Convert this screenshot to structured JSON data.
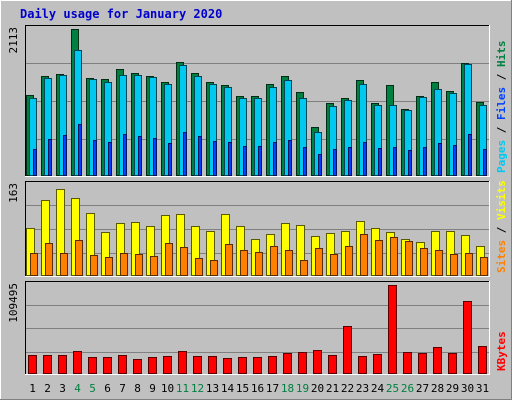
{
  "colors": {
    "background": "#c0c0c0",
    "plot_bg": "#c0c0c0",
    "title": "#0000cc",
    "hits": "#008040",
    "files": "#00c8f0",
    "pages": "#0040ff",
    "visits": "#ffff00",
    "sites": "#ff8000",
    "kbytes": "#ff0000",
    "weekend_day": "#008040",
    "weekday": "#000000"
  },
  "chart_data": [
    {
      "type": "bar",
      "title": "Daily usage for January 2020",
      "panel": "hits-files-pages",
      "ylabel": "Pages / Files / Hits",
      "ymax_label": "2113",
      "ylim": [
        0,
        2113
      ],
      "categories": [
        "1",
        "2",
        "3",
        "4",
        "5",
        "6",
        "7",
        "8",
        "9",
        "10",
        "11",
        "12",
        "13",
        "14",
        "15",
        "16",
        "17",
        "18",
        "19",
        "20",
        "21",
        "22",
        "23",
        "24",
        "25",
        "26",
        "27",
        "28",
        "29",
        "30",
        "31"
      ],
      "weekend_days": [
        "4",
        "5",
        "11",
        "12",
        "18",
        "19",
        "25",
        "26"
      ],
      "series": [
        {
          "name": "Hits",
          "values": [
            1160,
            1430,
            1460,
            2113,
            1410,
            1390,
            1530,
            1470,
            1430,
            1350,
            1630,
            1480,
            1340,
            1300,
            1140,
            1150,
            1320,
            1440,
            1200,
            690,
            1040,
            1110,
            1370,
            1040,
            1300,
            960,
            1150,
            1350,
            1220,
            1620,
            1060
          ]
        },
        {
          "name": "Files",
          "values": [
            1120,
            1410,
            1450,
            1810,
            1390,
            1350,
            1450,
            1450,
            1420,
            1320,
            1590,
            1440,
            1310,
            1270,
            1120,
            1120,
            1280,
            1380,
            1120,
            620,
            1000,
            1080,
            1320,
            1020,
            1020,
            940,
            1130,
            1250,
            1180,
            1600,
            1020
          ]
        },
        {
          "name": "Pages",
          "values": [
            380,
            520,
            580,
            740,
            500,
            480,
            600,
            560,
            540,
            470,
            620,
            560,
            490,
            480,
            420,
            420,
            480,
            500,
            400,
            300,
            380,
            400,
            480,
            390,
            400,
            360,
            410,
            470,
            440,
            600,
            380
          ]
        }
      ]
    },
    {
      "type": "bar",
      "panel": "visits-sites",
      "ylabel": "Sites / Visits",
      "ymax_label": "163",
      "ylim": [
        0,
        163
      ],
      "categories": [
        "1",
        "2",
        "3",
        "4",
        "5",
        "6",
        "7",
        "8",
        "9",
        "10",
        "11",
        "12",
        "13",
        "14",
        "15",
        "16",
        "17",
        "18",
        "19",
        "20",
        "21",
        "22",
        "23",
        "24",
        "25",
        "26",
        "27",
        "28",
        "29",
        "30",
        "31"
      ],
      "series": [
        {
          "name": "Visits",
          "values": [
            85,
            135,
            155,
            140,
            113,
            78,
            95,
            96,
            88,
            108,
            110,
            88,
            80,
            111,
            88,
            66,
            74,
            95,
            90,
            70,
            76,
            80,
            97,
            85,
            78,
            66,
            60,
            80,
            80,
            72,
            52
          ]
        },
        {
          "name": "Sites",
          "values": [
            40,
            58,
            40,
            63,
            36,
            32,
            40,
            38,
            34,
            58,
            50,
            30,
            28,
            56,
            46,
            42,
            52,
            46,
            28,
            48,
            38,
            52,
            75,
            64,
            68,
            62,
            48,
            45,
            38,
            40,
            33
          ]
        }
      ]
    },
    {
      "type": "bar",
      "panel": "kbytes",
      "ylabel": "KBytes",
      "ymax_label": "109495",
      "ylim": [
        0,
        109495
      ],
      "categories": [
        "1",
        "2",
        "3",
        "4",
        "5",
        "6",
        "7",
        "8",
        "9",
        "10",
        "11",
        "12",
        "13",
        "14",
        "15",
        "16",
        "17",
        "18",
        "19",
        "20",
        "21",
        "22",
        "23",
        "24",
        "25",
        "26",
        "27",
        "28",
        "29",
        "30",
        "31"
      ],
      "series": [
        {
          "name": "KBytes",
          "values": [
            22000,
            22000,
            22000,
            27000,
            20000,
            20000,
            22000,
            18000,
            20000,
            21000,
            27000,
            21000,
            21000,
            19000,
            20000,
            20000,
            21000,
            25000,
            26000,
            28000,
            22000,
            58000,
            21000,
            24000,
            109495,
            26000,
            25000,
            32000,
            25000,
            90000,
            34000
          ]
        }
      ]
    }
  ]
}
